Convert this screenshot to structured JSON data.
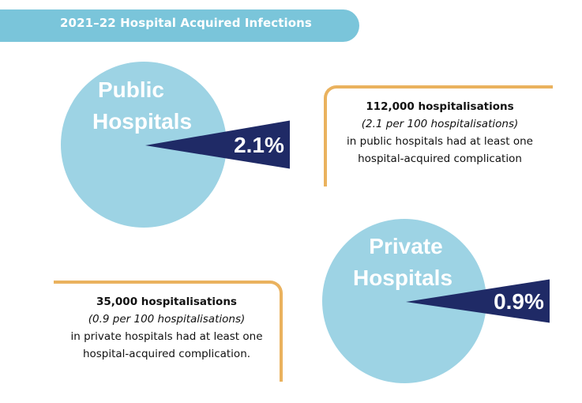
{
  "title": "2021–22 Hospital Acquired Infections",
  "colors": {
    "title_bg": "#7ac5da",
    "pie": "#9dd3e4",
    "slice": "#1f2a66",
    "box_border": "#eab25e"
  },
  "chart_data": [
    {
      "type": "pie",
      "title": "Public Hospitals",
      "slices": [
        {
          "label": "2.1%",
          "value": 2.1,
          "exploded": true
        },
        {
          "label": "",
          "value": 97.9
        }
      ]
    },
    {
      "type": "pie",
      "title": "Private Hospitals",
      "slices": [
        {
          "label": "0.9%",
          "value": 0.9,
          "exploded": true
        },
        {
          "label": "",
          "value": 99.1
        }
      ]
    }
  ],
  "public_box": {
    "headline": "112,000 hospitalisations",
    "rate": "(2.1 per 100 hospitalisations)",
    "line1": "in public hospitals had at least one",
    "line2": "hospital-acquired complication"
  },
  "private_box": {
    "headline": "35,000 hospitalisations",
    "rate": "(0.9 per 100 hospitalisations)",
    "line1": "in private hospitals had at least one",
    "line2": "hospital-acquired complication."
  }
}
